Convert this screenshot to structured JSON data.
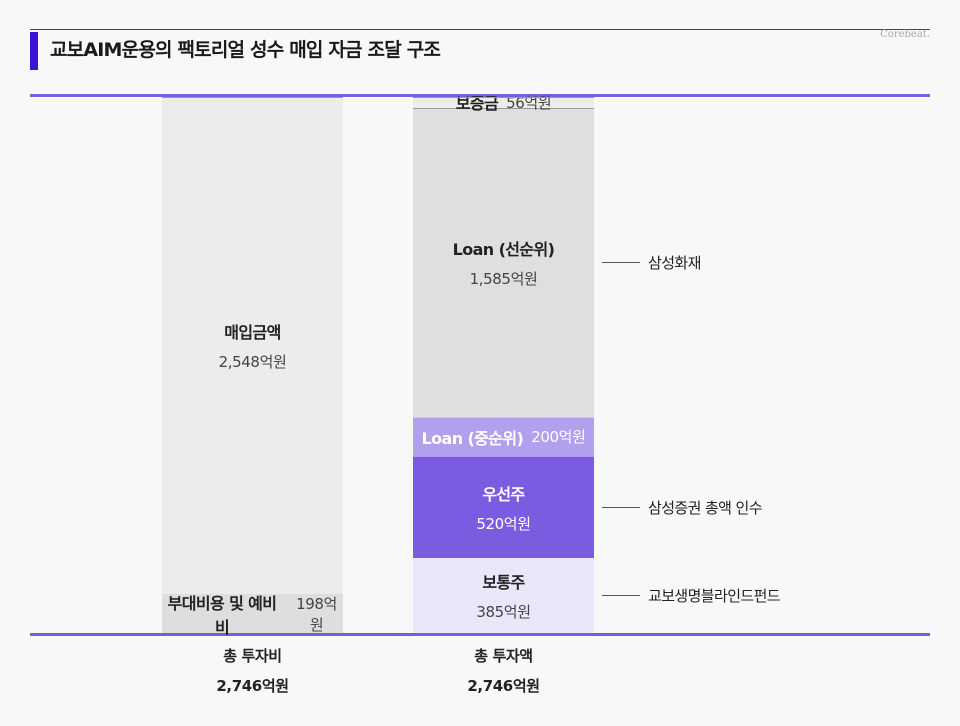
{
  "header": {
    "title": "교보AIM운용의 팩토리얼 성수 매입 자금 조달 구조",
    "brand": "Corebeat."
  },
  "chart_data": {
    "type": "bar",
    "stacked": true,
    "unit": "억원",
    "categories": [
      "총 투자비",
      "총 투자액"
    ],
    "series": [
      {
        "category": "총 투자비",
        "segments": [
          {
            "label": "부대비용 및 예비비",
            "value": 198,
            "value_label": "198억원",
            "color": "#dedede"
          },
          {
            "label": "매입금액",
            "value": 2548,
            "value_label": "2,548억원",
            "color": "#ececec"
          }
        ],
        "total_label": "2,746억원"
      },
      {
        "category": "총 투자액",
        "segments": [
          {
            "label": "보통주",
            "value": 385,
            "value_label": "385억원",
            "color": "#ebe7fb",
            "annotation": "교보생명블라인드펀드"
          },
          {
            "label": "우선주",
            "value": 520,
            "value_label": "520억원",
            "color": "#7b5bdf",
            "annotation": "삼성증권 총액 인수"
          },
          {
            "label": "Loan (중순위)",
            "value": 200,
            "value_label": "200억원",
            "color": "#b0a0ee"
          },
          {
            "label": "Loan (선순위)",
            "value": 1585,
            "value_label": "1,585억원",
            "color": "#dfdfdf",
            "annotation": "삼성화재"
          },
          {
            "label": "보증금",
            "value": 56,
            "value_label": "56억원",
            "color": "#ececec"
          }
        ],
        "total_label": "2,746억원"
      }
    ]
  }
}
